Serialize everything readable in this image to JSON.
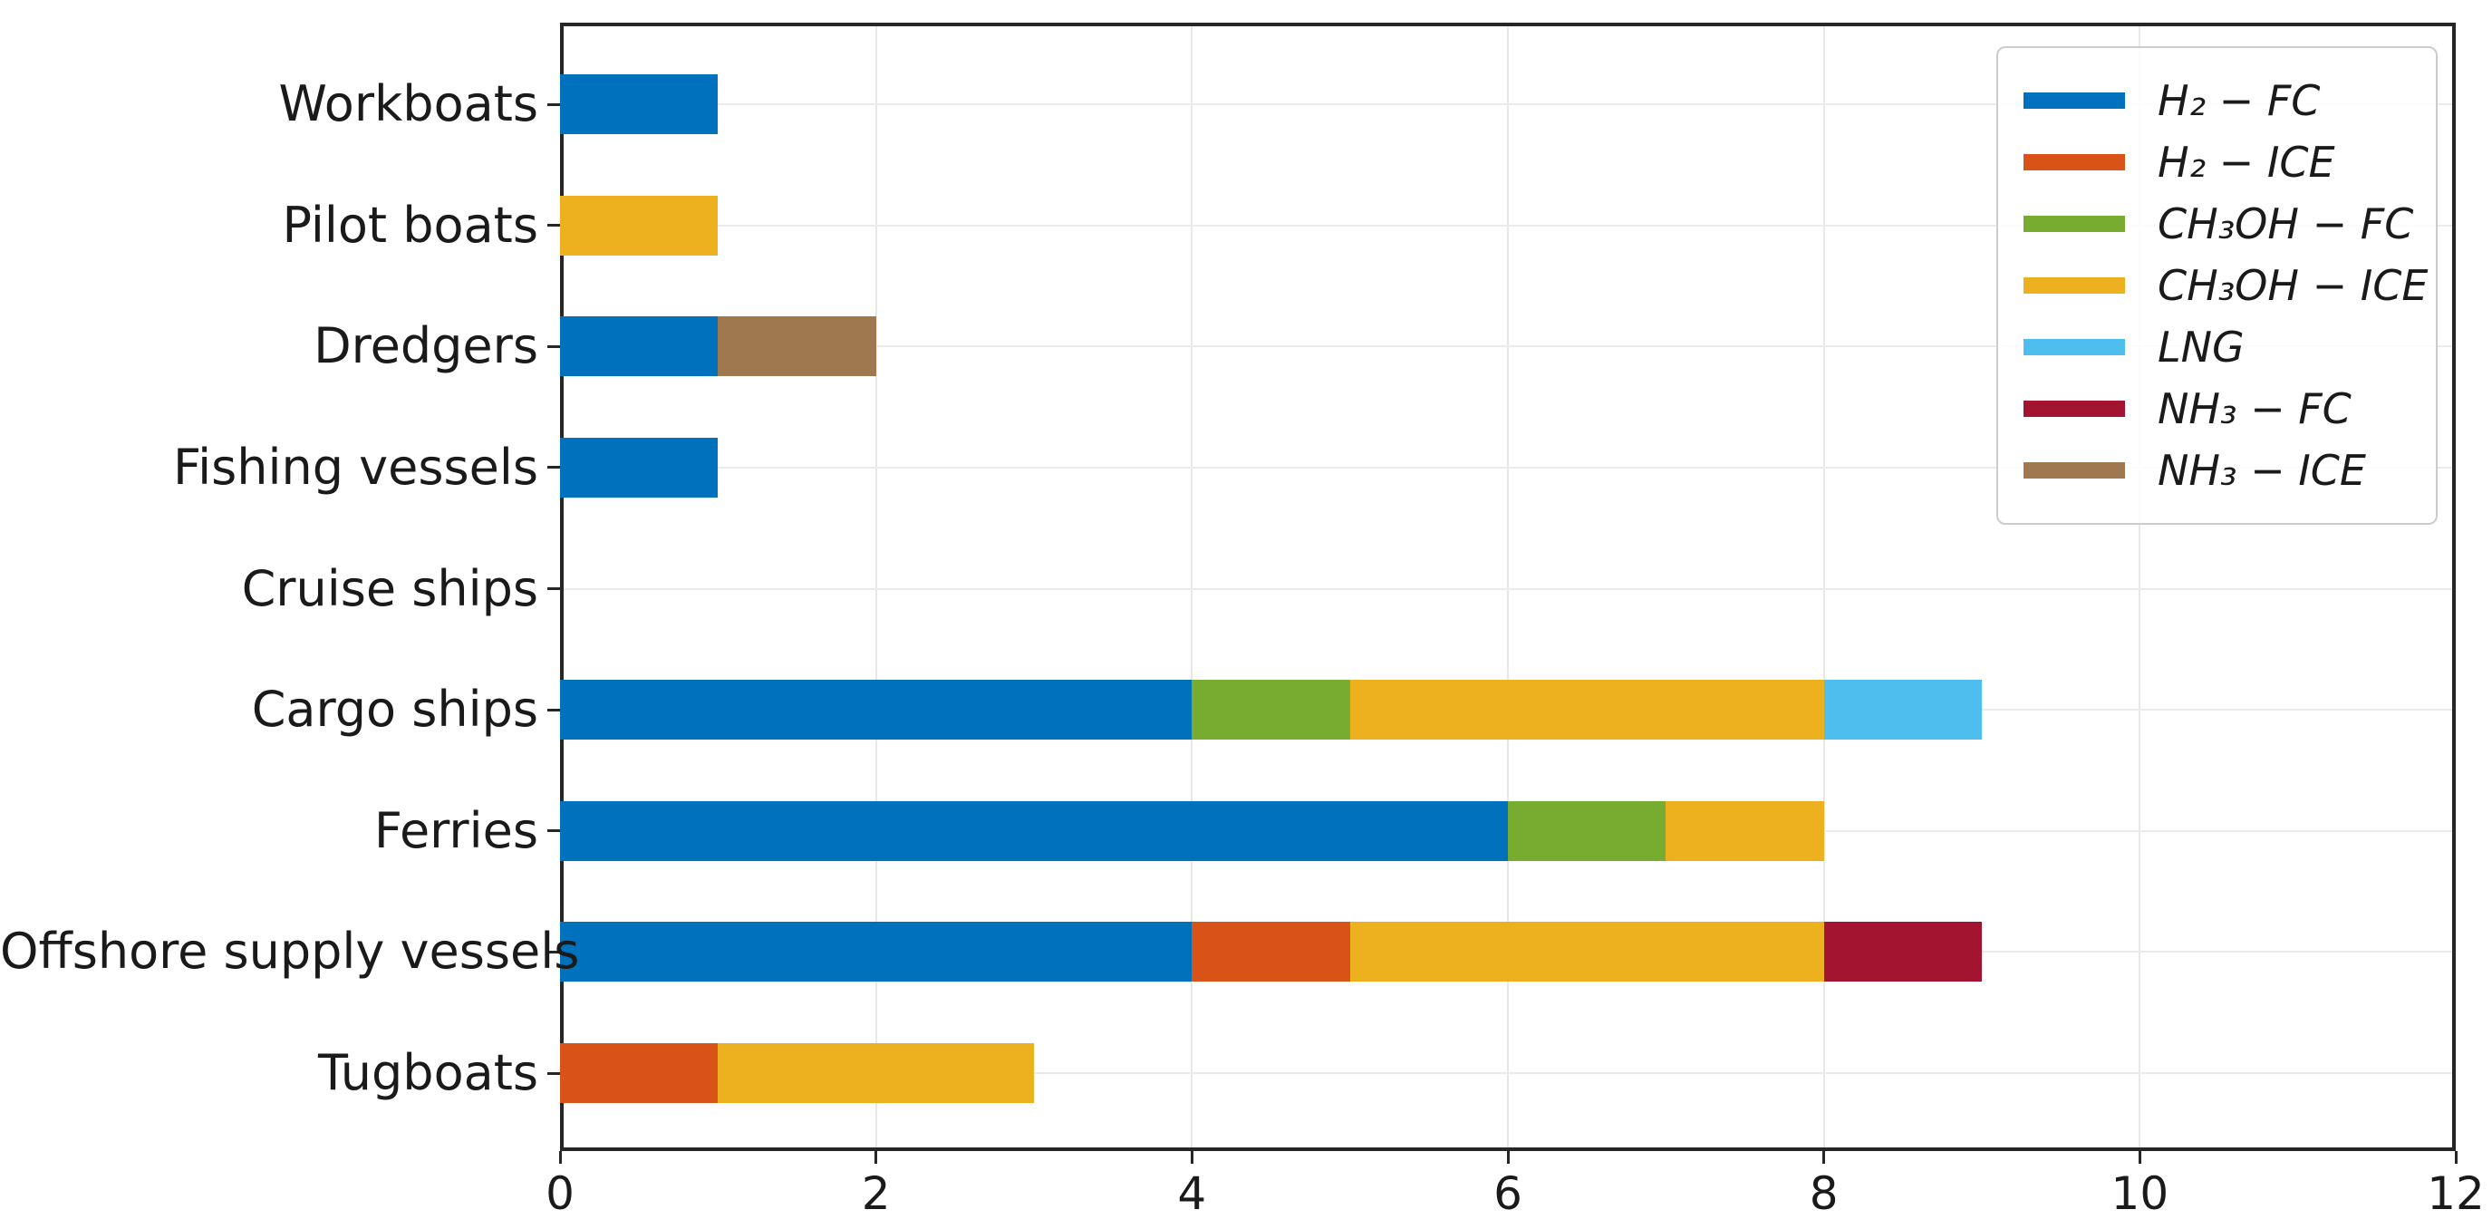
{
  "figure": {
    "background": "#ffffff",
    "text_color": "#1a1a1a",
    "spine_color": "#262626",
    "grid_color": "#e8e8e8",
    "legend_border_color": "#cccccc"
  },
  "chart_data": {
    "type": "bar",
    "orientation": "horizontal",
    "stacked": true,
    "title": "",
    "xlabel": "",
    "ylabel": "",
    "xlim": [
      0,
      12
    ],
    "xticks": [
      "0",
      "2",
      "4",
      "6",
      "8",
      "10",
      "12"
    ],
    "xtick_values": [
      0,
      2,
      4,
      6,
      8,
      10,
      12
    ],
    "grid": true,
    "legend_position": "upper right",
    "categories": [
      "Workboats",
      "Pilot boats",
      "Dredgers",
      "Fishing vessels",
      "Cruise ships",
      "Cargo ships",
      "Ferries",
      "Offshore supply vessels",
      "Tugboats"
    ],
    "series": [
      {
        "name": "H2-FC",
        "legend_label": "H₂ − FC",
        "color": "#0072BD",
        "values": [
          1,
          0,
          1,
          1,
          0,
          4,
          6,
          4,
          0
        ]
      },
      {
        "name": "H2-ICE",
        "legend_label": "H₂ − ICE",
        "color": "#D95319",
        "values": [
          0,
          0,
          0,
          0,
          0,
          0,
          0,
          1,
          1
        ]
      },
      {
        "name": "CH3OH-FC",
        "legend_label": "CH₃OH − FC",
        "color": "#77AC30",
        "values": [
          0,
          0,
          0,
          0,
          0,
          1,
          1,
          0,
          0
        ]
      },
      {
        "name": "CH3OH-ICE",
        "legend_label": "CH₃OH − ICE",
        "color": "#EDB120",
        "values": [
          0,
          1,
          0,
          0,
          0,
          3,
          1,
          3,
          2
        ]
      },
      {
        "name": "LNG",
        "legend_label": "LNG",
        "color": "#4DBEEE",
        "values": [
          0,
          0,
          0,
          0,
          0,
          1,
          0,
          0,
          0
        ]
      },
      {
        "name": "NH3-FC",
        "legend_label": "NH₃ − FC",
        "color": "#A2142F",
        "values": [
          0,
          0,
          0,
          0,
          0,
          0,
          0,
          1,
          0
        ]
      },
      {
        "name": "NH3-ICE",
        "legend_label": "NH₃ − ICE",
        "color": "#A07850",
        "values": [
          0,
          0,
          1,
          0,
          0,
          0,
          0,
          0,
          0
        ]
      }
    ]
  }
}
